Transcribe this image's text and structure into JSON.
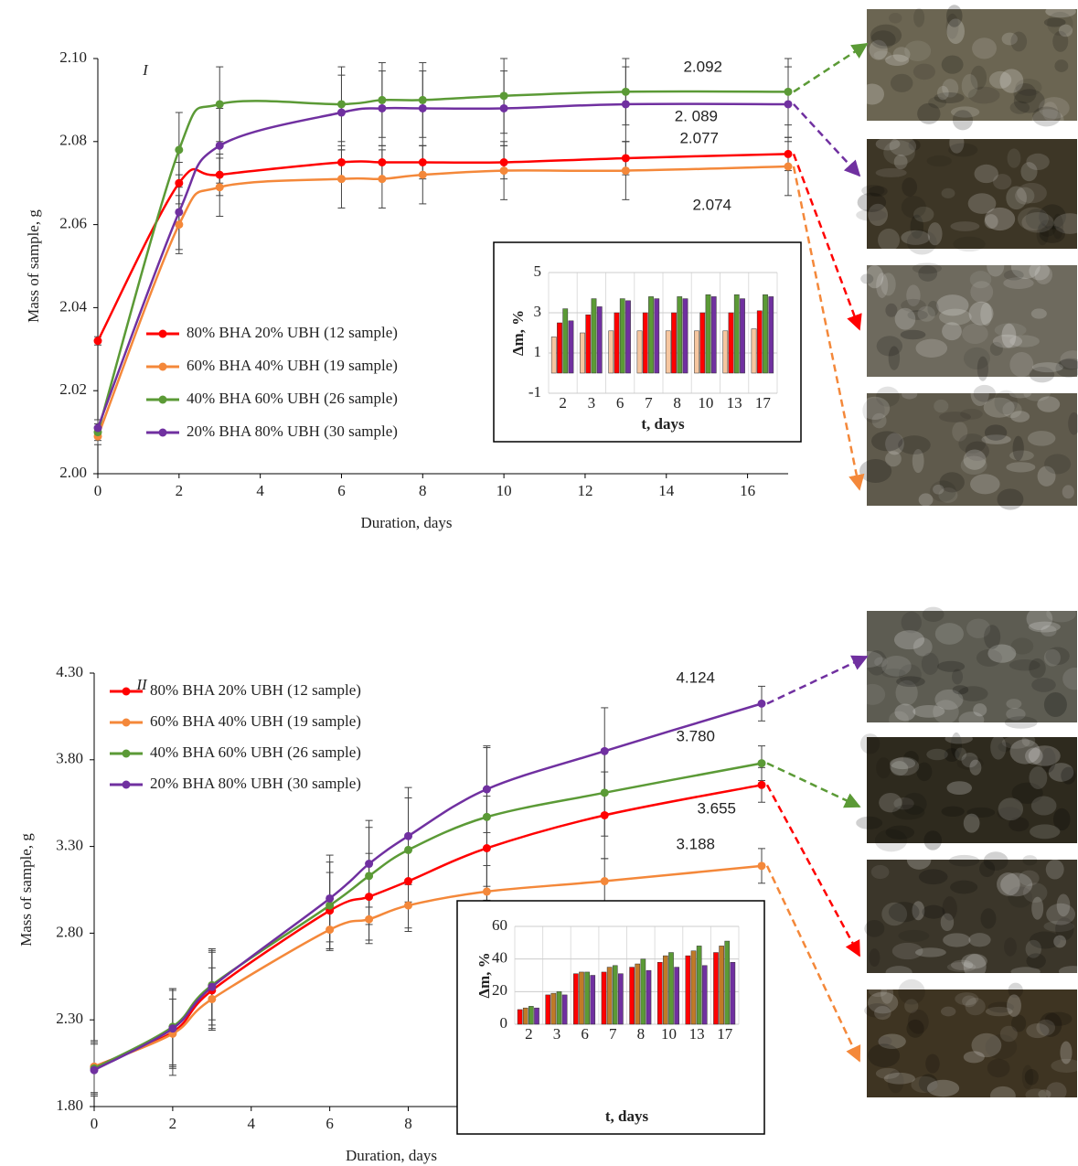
{
  "chart_data": [
    {
      "type": "line",
      "title": "I",
      "x_label": "Duration, days",
      "y_label": "Mass of sample, g",
      "x": [
        0,
        2,
        3,
        6,
        7,
        8,
        10,
        13,
        17
      ],
      "xlim": [
        0,
        17
      ],
      "xticks": [
        0,
        2,
        4,
        6,
        8,
        10,
        12,
        14,
        16
      ],
      "ylim": [
        2.0,
        2.1
      ],
      "yticks": [
        {
          "value": 2.0,
          "label": "2.00"
        },
        2.02,
        2.04,
        2.06,
        2.08,
        {
          "value": 2.1,
          "label": "2.10"
        }
      ],
      "series": [
        {
          "name": "80% BHA  20% UBH (12 sample)",
          "color": "#ff0000",
          "values": [
            2.032,
            2.07,
            2.072,
            2.075,
            2.075,
            2.075,
            2.075,
            2.076,
            2.077
          ],
          "errors": [
            0.001,
            0.005,
            0.005,
            0.004,
            0.004,
            0.004,
            0.004,
            0.004,
            0.004
          ]
        },
        {
          "name": "60% BHA  40% UBH (19 sample)",
          "color": "#f4883a",
          "values": [
            2.009,
            2.06,
            2.069,
            2.071,
            2.071,
            2.072,
            2.073,
            2.073,
            2.074
          ],
          "errors": [
            0.002,
            0.007,
            0.007,
            0.007,
            0.007,
            0.007,
            0.007,
            0.007,
            0.007
          ]
        },
        {
          "name": "40% BHA  60% UBH (26 sample)",
          "color": "#5b9a36",
          "values": [
            2.01,
            2.078,
            2.089,
            2.089,
            2.09,
            2.09,
            2.091,
            2.092,
            2.092
          ],
          "errors": [
            0.002,
            0.009,
            0.009,
            0.009,
            0.009,
            0.009,
            0.009,
            0.008,
            0.008
          ]
        },
        {
          "name": "20% BHA   80% UBH (30 sample)",
          "color": "#7030a0",
          "values": [
            2.011,
            2.063,
            2.079,
            2.087,
            2.088,
            2.088,
            2.088,
            2.089,
            2.089
          ],
          "errors": [
            0.002,
            0.009,
            0.009,
            0.009,
            0.009,
            0.009,
            0.009,
            0.009,
            0.009
          ]
        }
      ],
      "annotations": [
        "2.092",
        "2. 089",
        "2.077",
        "2.074"
      ]
    },
    {
      "type": "bar",
      "x_label": "t, days",
      "y_label": "Δm, %",
      "categories": [
        "2",
        "3",
        "6",
        "7",
        "8",
        "10",
        "13",
        "17"
      ],
      "ylim": [
        -1,
        5
      ],
      "yticks": [
        -1,
        1,
        3,
        5
      ],
      "series": [
        {
          "color": "#f6c6a0",
          "values": [
            1.8,
            2.0,
            2.1,
            2.1,
            2.1,
            2.1,
            2.1,
            2.2
          ]
        },
        {
          "color": "#ff0000",
          "values": [
            2.5,
            2.9,
            3.0,
            3.0,
            3.0,
            3.0,
            3.0,
            3.1
          ]
        },
        {
          "color": "#5b9a36",
          "values": [
            3.2,
            3.7,
            3.7,
            3.8,
            3.8,
            3.9,
            3.9,
            3.9
          ]
        },
        {
          "color": "#7030a0",
          "values": [
            2.6,
            3.3,
            3.6,
            3.7,
            3.7,
            3.8,
            3.7,
            3.8
          ]
        }
      ]
    },
    {
      "type": "line",
      "title": "II",
      "x_label": "Duration, days",
      "y_label": "Mass of sample, g",
      "x": [
        0,
        2,
        3,
        6,
        7,
        8,
        10,
        13,
        17
      ],
      "xlim": [
        0,
        17
      ],
      "xticks": [
        0,
        2,
        4,
        6,
        8,
        10,
        12,
        14,
        16
      ],
      "ylim": [
        1.8,
        4.3
      ],
      "yticks": [
        {
          "value": 1.8,
          "label": "1.80"
        },
        {
          "value": 2.3,
          "label": "2.30"
        },
        {
          "value": 2.8,
          "label": "2.80"
        },
        {
          "value": 3.3,
          "label": "3.30"
        },
        {
          "value": 3.8,
          "label": "3.80"
        },
        {
          "value": 4.3,
          "label": "4.30"
        }
      ],
      "series": [
        {
          "name": "80% BHA  20% UBH (12 sample)",
          "color": "#ff0000",
          "values": [
            2.03,
            2.23,
            2.47,
            2.93,
            3.01,
            3.1,
            3.29,
            3.48,
            3.655
          ],
          "errors": [
            0.15,
            0.25,
            0.22,
            0.22,
            0.25,
            0.27,
            0.3,
            0.25,
            0.1
          ]
        },
        {
          "name": "60% BHA  40% UBH (19 sample)",
          "color": "#f4883a",
          "values": [
            2.03,
            2.22,
            2.42,
            2.82,
            2.88,
            2.96,
            3.04,
            3.1,
            3.188
          ],
          "errors": [
            0.15,
            0.2,
            0.18,
            0.12,
            0.14,
            0.15,
            0.15,
            0.13,
            0.1
          ]
        },
        {
          "name": "40% BHA  60% UBH (26 sample)",
          "color": "#5b9a36",
          "values": [
            2.02,
            2.26,
            2.5,
            2.96,
            3.13,
            3.28,
            3.47,
            3.61,
            3.78
          ],
          "errors": [
            0.15,
            0.22,
            0.2,
            0.25,
            0.28,
            0.3,
            0.4,
            0.25,
            0.1
          ]
        },
        {
          "name": "20% BHA   80% UBH (30 sample)",
          "color": "#7030a0",
          "values": [
            2.01,
            2.25,
            2.49,
            3.0,
            3.2,
            3.36,
            3.63,
            3.85,
            4.124
          ],
          "errors": [
            0.15,
            0.22,
            0.22,
            0.25,
            0.25,
            0.28,
            0.25,
            0.25,
            0.1
          ]
        }
      ],
      "annotations": [
        "4.124",
        "3.780",
        "3.655",
        "3.188"
      ]
    },
    {
      "type": "bar",
      "x_label": "t, days",
      "y_label": "Δm, %",
      "categories": [
        "2",
        "3",
        "6",
        "7",
        "8",
        "10",
        "13",
        "17"
      ],
      "ylim": [
        0,
        60
      ],
      "yticks": [
        0,
        20,
        40,
        60
      ],
      "series": [
        {
          "color": "#ff0000",
          "values": [
            9,
            18,
            31,
            32,
            35,
            38,
            42,
            44
          ]
        },
        {
          "color": "#c07a28",
          "values": [
            10,
            19,
            32,
            35,
            37,
            42,
            45,
            48
          ]
        },
        {
          "color": "#5b9a36",
          "values": [
            11,
            20,
            32,
            36,
            40,
            44,
            48,
            51
          ]
        },
        {
          "color": "#7030a0",
          "values": [
            10,
            18,
            30,
            31,
            33,
            35,
            36,
            38
          ]
        }
      ]
    }
  ]
}
